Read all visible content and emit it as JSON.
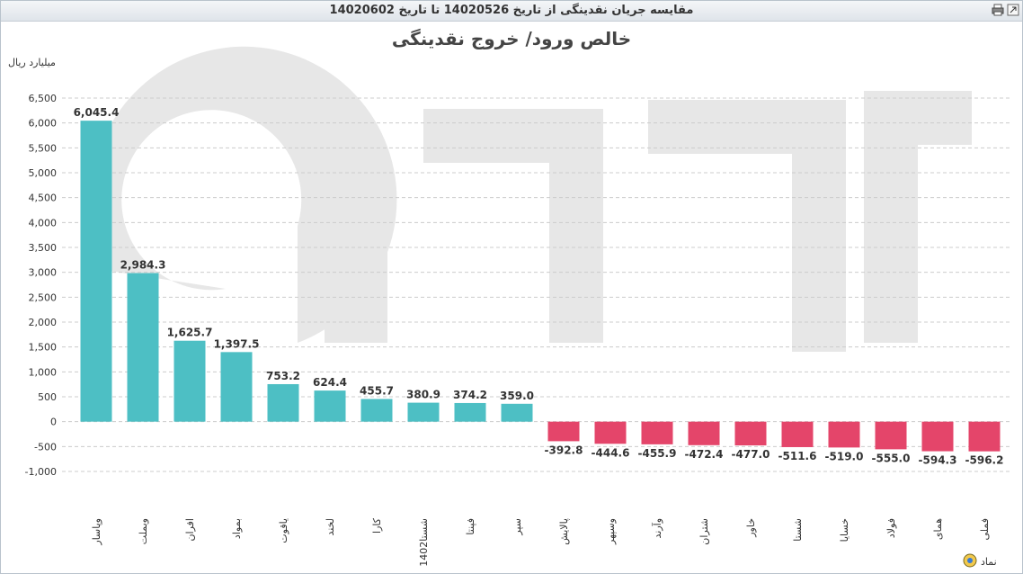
{
  "window": {
    "title": "مقایسه جریان نقدینگی از تاریخ 14020526 تا تاریخ 14020602"
  },
  "icons": [
    "print-icon",
    "expand-icon",
    "symbol-legend-icon"
  ],
  "footer": {
    "axis_name": "نماد"
  },
  "colors": {
    "positive": "#4dbfc4",
    "negative": "#e4456a",
    "grid": "#cccccc",
    "watermark": "#e7e7e7"
  },
  "chart_data": {
    "type": "bar",
    "title": "خالص ورود/ خروج نقدینگی",
    "ylabel": "میلیارد ریال",
    "xlabel": "نماد",
    "ylim": [
      -1000,
      6500
    ],
    "yticks": [
      -1000,
      -500,
      0,
      500,
      1000,
      1500,
      2000,
      2500,
      3000,
      3500,
      4000,
      4500,
      5000,
      5500,
      6000,
      6500
    ],
    "ytick_labels": [
      "-1,000",
      "-500",
      "0",
      "500",
      "1,000",
      "1,500",
      "2,000",
      "2,500",
      "3,000",
      "3,500",
      "4,000",
      "4,500",
      "5,000",
      "5,500",
      "6,000",
      "6,500"
    ],
    "grid": true,
    "categories": [
      "وپاسار",
      "وبملت",
      "افران",
      "بمواد",
      "یاقوت",
      "لخند",
      "کارا",
      "شستا1402",
      "فپنتا",
      "سپر",
      "پالایش",
      "وسپهر",
      "وآرند",
      "شتران",
      "خاور",
      "شستا",
      "خسایا",
      "فولاد",
      "همای",
      "فملی"
    ],
    "values": [
      6045.4,
      2984.3,
      1625.7,
      1397.5,
      753.2,
      624.4,
      455.7,
      380.9,
      374.2,
      359.0,
      -392.8,
      -444.6,
      -455.9,
      -472.4,
      -477.0,
      -511.6,
      -519.0,
      -555.0,
      -594.3,
      -596.2
    ],
    "value_labels": [
      "6,045.4",
      "2,984.3",
      "1,625.7",
      "1,397.5",
      "753.2",
      "624.4",
      "455.7",
      "380.9",
      "374.2",
      "359.0",
      "-392.8",
      "-444.6",
      "-455.9",
      "-472.4",
      "-477.0",
      "-511.6",
      "-519.0",
      "-555.0",
      "-594.3",
      "-596.2"
    ]
  }
}
